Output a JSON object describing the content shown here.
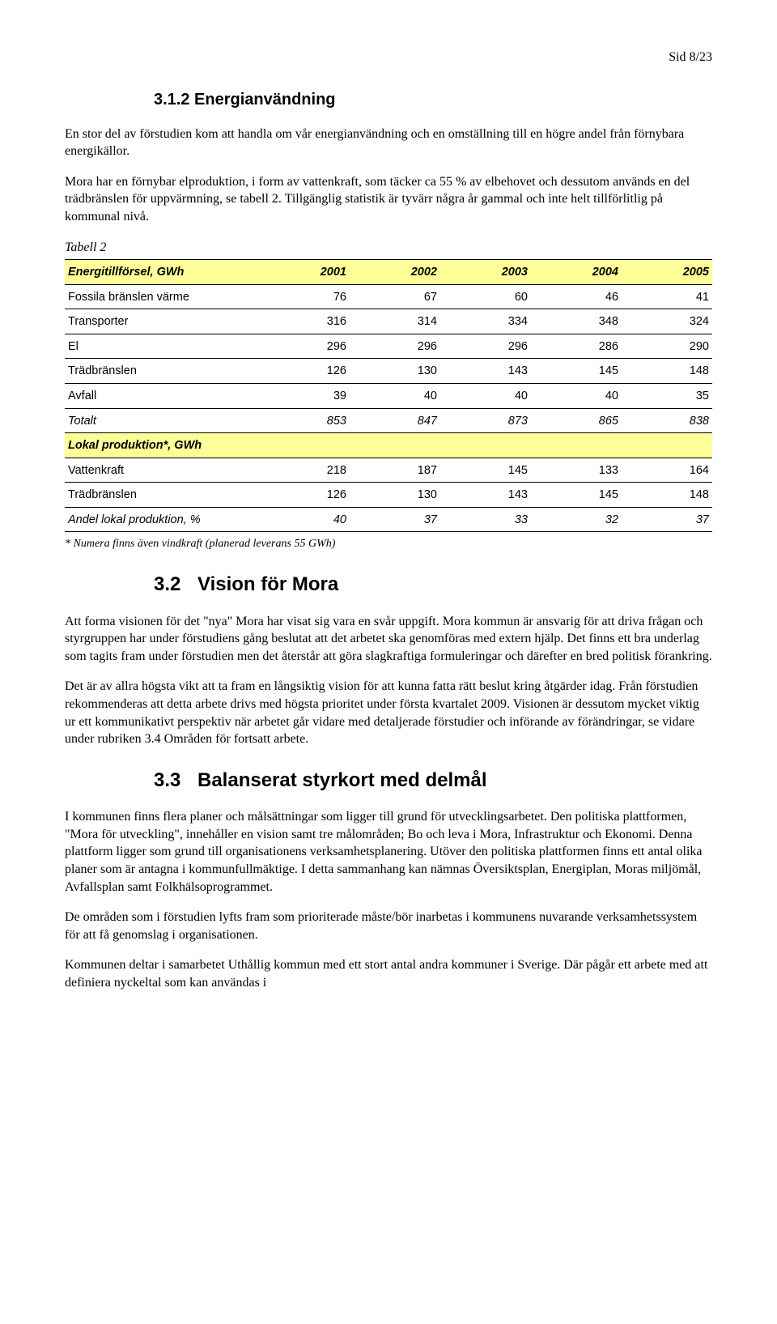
{
  "page_number": "Sid 8/23",
  "heading_312": "3.1.2 Energianvändning",
  "para1": "En stor del av förstudien kom att handla om vår energianvändning och en omställning till en högre andel från förnybara energikällor.",
  "para2": "Mora har en förnybar elproduktion, i form av vattenkraft, som täcker ca 55 % av elbehovet och dessutom används en del trädbränslen för uppvärmning, se tabell 2. Tillgänglig statistik är tyvärr några år gammal och inte helt tillförlitlig på kommunal nivå.",
  "table_caption": "Tabell 2",
  "table": {
    "section1_header": [
      "Energitillförsel, GWh",
      "2001",
      "2002",
      "2003",
      "2004",
      "2005"
    ],
    "rows1": [
      {
        "label": "Fossila bränslen värme",
        "v": [
          "76",
          "67",
          "60",
          "46",
          "41"
        ]
      },
      {
        "label": "Transporter",
        "v": [
          "316",
          "314",
          "334",
          "348",
          "324"
        ]
      },
      {
        "label": "El",
        "v": [
          "296",
          "296",
          "296",
          "286",
          "290"
        ]
      },
      {
        "label": "Trädbränslen",
        "v": [
          "126",
          "130",
          "143",
          "145",
          "148"
        ]
      },
      {
        "label": "Avfall",
        "v": [
          "39",
          "40",
          "40",
          "40",
          "35"
        ]
      }
    ],
    "total1": {
      "label": "Totalt",
      "v": [
        "853",
        "847",
        "873",
        "865",
        "838"
      ]
    },
    "section2_header": "Lokal produktion*, GWh",
    "rows2": [
      {
        "label": "Vattenkraft",
        "v": [
          "218",
          "187",
          "145",
          "133",
          "164"
        ]
      },
      {
        "label": "Trädbränslen",
        "v": [
          "126",
          "130",
          "143",
          "145",
          "148"
        ]
      }
    ],
    "andel": {
      "label": "Andel lokal produktion, %",
      "v": [
        "40",
        "37",
        "33",
        "32",
        "37"
      ]
    }
  },
  "footnote": "* Numera finns även vindkraft (planerad leverans 55 GWh)",
  "heading_32_num": "3.2",
  "heading_32": "Vision för Mora",
  "para3": "Att forma visionen för det \"nya\" Mora har visat sig vara en svår uppgift. Mora kommun är ansvarig för att driva frågan och styrgruppen har under förstudiens gång beslutat att det arbetet ska genomföras med extern hjälp. Det finns ett bra underlag som tagits fram under förstudien men det återstår att göra slagkraftiga formuleringar och därefter en bred politisk förankring.",
  "para4": "Det är av allra högsta vikt att ta fram en långsiktig vision för att kunna fatta rätt beslut kring åtgärder idag. Från förstudien rekommenderas att detta arbete drivs med högsta prioritet under första kvartalet 2009. Visionen är dessutom mycket viktig ur ett kommunikativt perspektiv när arbetet går vidare med detaljerade förstudier och införande av förändringar, se vidare under rubriken 3.4 Områden för fortsatt arbete.",
  "heading_33_num": "3.3",
  "heading_33": "Balanserat styrkort med delmål",
  "para5": "I kommunen finns flera planer och målsättningar som ligger till grund för utvecklings­arbetet. Den politiska plattformen, \"Mora för utveckling\", innehåller en vision samt tre målområden; Bo och leva i Mora, Infrastruktur och Ekonomi. Denna plattform ligger som grund till organisationens verksamhetsplanering. Utöver den politiska plattformen finns ett antal olika planer som är antagna i kommunfullmäktige. I detta sammanhang kan nämnas Översiktsplan, Energiplan, Moras miljömål, Avfallsplan samt Folkhälsoprogrammet.",
  "para6": "De områden som i förstudien lyfts fram som prioriterade måste/bör inarbetas i kommunens nuvarande verksamhetssystem för att få genomslag i organisationen.",
  "para7": "Kommunen deltar i samarbetet Uthållig kommun med ett stort antal andra kommuner i Sverige. Där pågår ett arbete med att definiera nyckeltal som kan användas i"
}
